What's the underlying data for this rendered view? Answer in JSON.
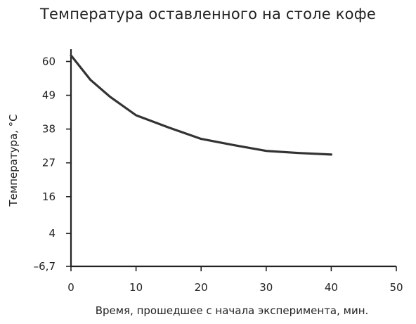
{
  "chart_data": {
    "type": "line",
    "title": "Температура оставленного на столе кофе",
    "xlabel": "Время, прошедшее с начала эксперимента, мин.",
    "ylabel": "Температура, °С",
    "xlim": [
      0,
      50
    ],
    "ylim": [
      -6.7,
      64
    ],
    "x_ticks": [
      0,
      10,
      20,
      30,
      40,
      50
    ],
    "x_tick_labels": [
      "0",
      "10",
      "20",
      "30",
      "40",
      "50"
    ],
    "y_ticks": [
      -6.7,
      4,
      16,
      27,
      38,
      49,
      60
    ],
    "y_tick_labels": [
      "–6,7",
      "4",
      "16",
      "27",
      "38",
      "49",
      "60"
    ],
    "grid": false,
    "series": [
      {
        "color": "#333333",
        "x": [
          0,
          3,
          6,
          10,
          15,
          20,
          25,
          30,
          35,
          40
        ],
        "y": [
          62,
          54,
          48.5,
          42.5,
          38.5,
          34.8,
          32.8,
          30.9,
          30.2,
          29.7
        ]
      }
    ]
  }
}
